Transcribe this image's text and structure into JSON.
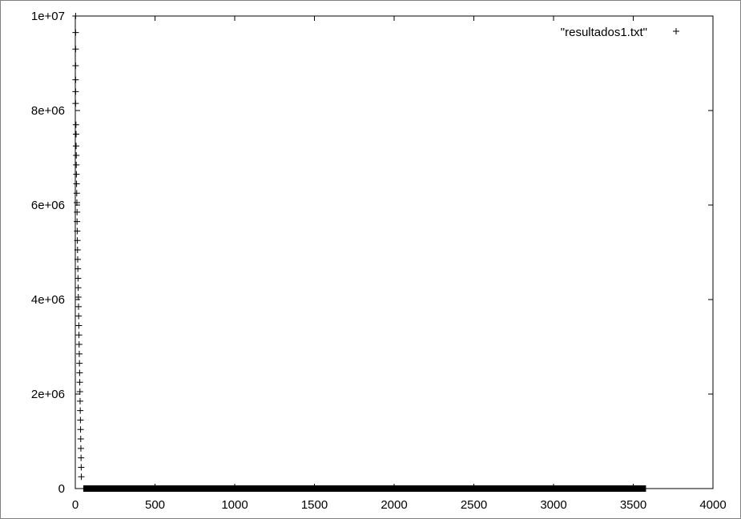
{
  "chart_data": {
    "type": "scatter",
    "title": "",
    "xlabel": "",
    "ylabel": "",
    "xlim": [
      0,
      4000
    ],
    "ylim": [
      0,
      10000000
    ],
    "xticks": [
      0,
      500,
      1000,
      1500,
      2000,
      2500,
      3000,
      3500,
      4000
    ],
    "xtick_labels": [
      "0",
      "500",
      "1000",
      "1500",
      "2000",
      "2500",
      "3000",
      "3500",
      "4000"
    ],
    "yticks": [
      0,
      2000000,
      4000000,
      6000000,
      8000000,
      10000000
    ],
    "ytick_labels": [
      "0",
      "2e+06",
      "4e+06",
      "6e+06",
      "8e+06",
      "1e+07"
    ],
    "grid": false,
    "legend_position": "top-right",
    "marker": "plus",
    "point_color": "#000000",
    "series": [
      {
        "name": "\"resultados1.txt\"",
        "points": [
          [
            2,
            10000000
          ],
          [
            2,
            9650000
          ],
          [
            2,
            9300000
          ],
          [
            2,
            8950000
          ],
          [
            2,
            8650000
          ],
          [
            2,
            8400000
          ],
          [
            2,
            8150000
          ],
          [
            4,
            7700000
          ],
          [
            5,
            7500000
          ],
          [
            5,
            7250000
          ],
          [
            6,
            7050000
          ],
          [
            6,
            6850000
          ],
          [
            7,
            6650000
          ],
          [
            8,
            6450000
          ],
          [
            9,
            6250000
          ],
          [
            10,
            6050000
          ],
          [
            11,
            5850000
          ],
          [
            11,
            5650000
          ],
          [
            12,
            5450000
          ],
          [
            13,
            5250000
          ],
          [
            14,
            5050000
          ],
          [
            15,
            4850000
          ],
          [
            16,
            4650000
          ],
          [
            17,
            4450000
          ],
          [
            18,
            4250000
          ],
          [
            19,
            4050000
          ],
          [
            20,
            3850000
          ],
          [
            21,
            3650000
          ],
          [
            22,
            3450000
          ],
          [
            23,
            3250000
          ],
          [
            24,
            3050000
          ],
          [
            25,
            2850000
          ],
          [
            26,
            2650000
          ],
          [
            27,
            2450000
          ],
          [
            28,
            2250000
          ],
          [
            29,
            2050000
          ],
          [
            30,
            1850000
          ],
          [
            31,
            1650000
          ],
          [
            32,
            1450000
          ],
          [
            33,
            1250000
          ],
          [
            34,
            1050000
          ],
          [
            35,
            850000
          ],
          [
            36,
            650000
          ],
          [
            37,
            450000
          ],
          [
            38,
            250000
          ]
        ],
        "baseline_band": {
          "x_start": 50,
          "x_end": 3580,
          "y": 0
        }
      }
    ]
  }
}
